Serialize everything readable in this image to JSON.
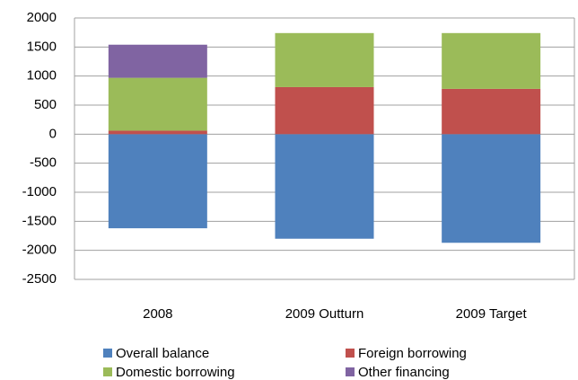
{
  "chart_data": {
    "type": "stacked_bar",
    "categories": [
      "2008",
      "2009 Outturn",
      "2009 Target"
    ],
    "series": [
      {
        "name": "Overall balance",
        "color": "#4f81bd",
        "values": [
          -1620,
          -1800,
          -1870
        ]
      },
      {
        "name": "Foreign borrowing",
        "color": "#c0504d",
        "values": [
          60,
          810,
          780
        ]
      },
      {
        "name": "Domestic borrowing",
        "color": "#9bbb59",
        "values": [
          910,
          930,
          960
        ]
      },
      {
        "name": "Other financing",
        "color": "#8064a2",
        "values": [
          570,
          0,
          0
        ]
      }
    ],
    "ylim": [
      -2500,
      2000
    ],
    "yticks": [
      -2500,
      -2000,
      -1500,
      -1000,
      -500,
      0,
      500,
      1000,
      1500,
      2000
    ],
    "grid": true
  }
}
